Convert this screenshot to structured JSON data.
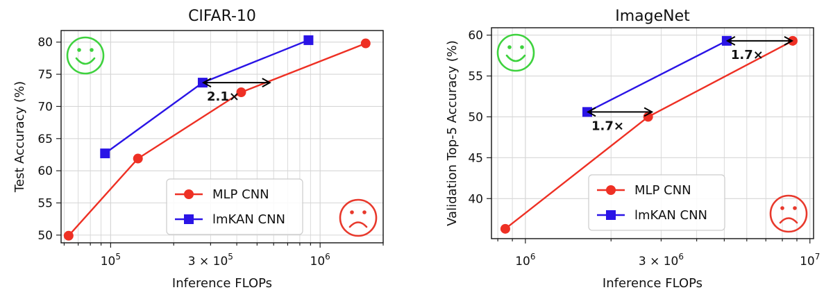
{
  "colors": {
    "mlp": "#ee3024",
    "lmkan": "#2a14e6",
    "happy": "#3ed23e",
    "sad": "#e8392c",
    "grid": "#d6d6d6"
  },
  "chart_data": [
    {
      "type": "line",
      "title": "CIFAR-10",
      "xlabel": "Inference FLOPs",
      "ylabel": "Test Accuracy (%)",
      "xscale": "log",
      "xlim": [
        58000,
        2000000
      ],
      "ylim": [
        48.8,
        81.8
      ],
      "yticks": [
        50,
        55,
        60,
        65,
        70,
        75,
        80
      ],
      "ytick_labels": [
        "50",
        "55",
        "60",
        "65",
        "70",
        "75",
        "80"
      ],
      "xticks": [
        100000,
        300000,
        1000000
      ],
      "xtick_labels": [
        {
          "base": "10",
          "exp": "5"
        },
        {
          "base": "3 × 10",
          "exp": "5"
        },
        {
          "base": "10",
          "exp": "6"
        }
      ],
      "legend": {
        "position": "lower-center",
        "entries": [
          "MLP CNN",
          "lmKAN CNN"
        ]
      },
      "series": [
        {
          "name": "MLP CNN",
          "marker": "circle",
          "x": [
            63000,
            135000,
            420000,
            1650000
          ],
          "y": [
            49.9,
            61.9,
            72.2,
            79.8
          ]
        },
        {
          "name": "lmKAN CNN",
          "marker": "square",
          "x": [
            94000,
            275000,
            880000
          ],
          "y": [
            62.7,
            73.7,
            80.3
          ]
        }
      ],
      "annotations": [
        {
          "label": "2.1×",
          "x_from": 275000,
          "x_to": 580000,
          "y": 73.7
        }
      ]
    },
    {
      "type": "line",
      "title": "ImageNet",
      "xlabel": "Inference FLOPs",
      "ylabel": "Validation Top-5 Accuracy (%)",
      "xscale": "log",
      "xlim": [
        760000,
        10300000
      ],
      "ylim": [
        35.1,
        60.9
      ],
      "yticks": [
        40,
        45,
        50,
        55,
        60
      ],
      "ytick_labels": [
        "40",
        "45",
        "50",
        "55",
        "60"
      ],
      "xticks": [
        1000000,
        3000000,
        10000000
      ],
      "xtick_labels": [
        {
          "base": "10",
          "exp": "6"
        },
        {
          "base": "3 × 10",
          "exp": "6"
        },
        {
          "base": "10",
          "exp": "7"
        }
      ],
      "legend": {
        "position": "lower-center",
        "entries": [
          "MLP CNN",
          "lmKAN CNN"
        ]
      },
      "series": [
        {
          "name": "MLP CNN",
          "marker": "circle",
          "x": [
            850000,
            2700000,
            8700000
          ],
          "y": [
            36.3,
            50.0,
            59.3
          ]
        },
        {
          "name": "lmKAN CNN",
          "marker": "square",
          "x": [
            1650000,
            5100000
          ],
          "y": [
            50.6,
            59.3
          ]
        }
      ],
      "annotations": [
        {
          "label": "1.7×",
          "x_from": 1650000,
          "x_to": 2800000,
          "y": 50.6
        },
        {
          "label": "1.7×",
          "x_from": 5100000,
          "x_to": 8700000,
          "y": 59.3
        }
      ]
    }
  ]
}
